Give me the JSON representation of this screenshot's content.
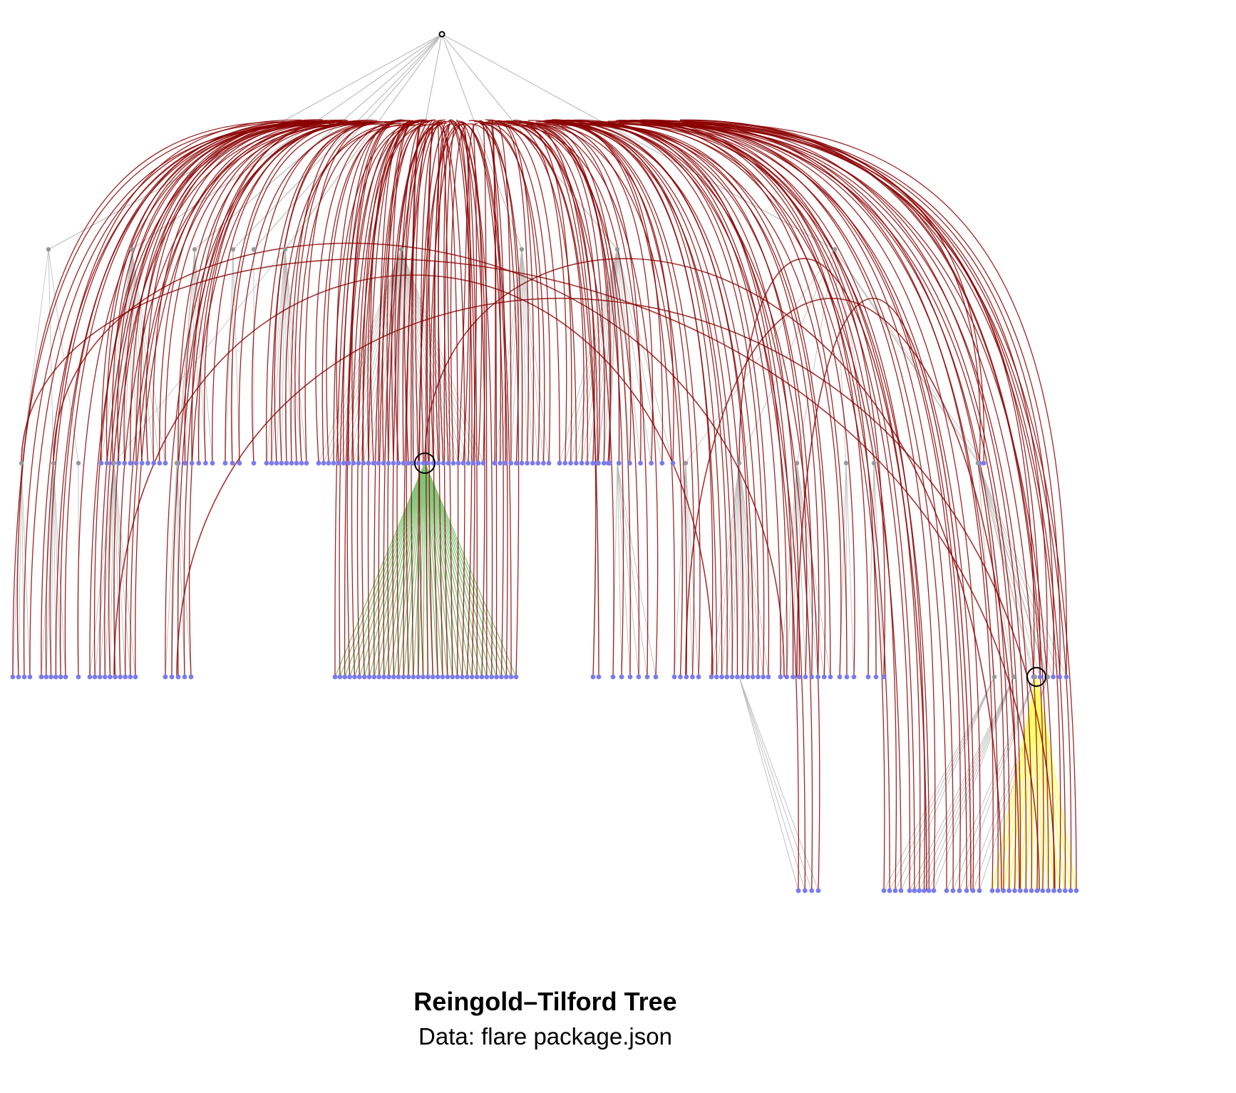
{
  "figure": {
    "title": "Reingold–Tilford Tree",
    "subtitle": "Data: flare package.json"
  },
  "colors": {
    "background": "#ffffff",
    "tree_edge": "#b8b8b8",
    "dependency_edge": "#8b0000",
    "highlight_green": "#7cc576",
    "highlight_yellow": "#ffff66",
    "leaf_node": "#7b7bee",
    "internal_node": "#999999",
    "root_node": "#000000"
  },
  "diagram": {
    "type": "tidy-tree with hierarchical edge bundles",
    "levels": 5,
    "highlighted_groups": [
      "green fan",
      "yellow fan"
    ],
    "legend": "none"
  }
}
